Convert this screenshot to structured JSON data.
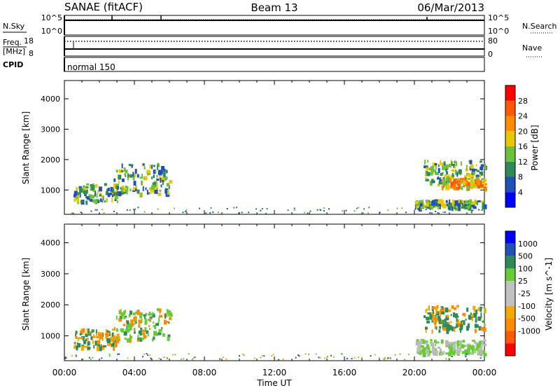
{
  "header": {
    "station": "SANAE (fitACF)",
    "beam": "Beam 13",
    "date": "06/Mar/2013"
  },
  "status_panels": {
    "nsky_label": "N.Sky",
    "nsky_ticks": [
      "10^5",
      "10^0"
    ],
    "nsearch_label": "N.Search",
    "nsearch_ticks": [
      "10^5",
      "10^0"
    ],
    "freq_label": "Freq.",
    "freq_unit": "[MHz]",
    "freq_ticks": [
      "18",
      "8"
    ],
    "nave_label": "Nave",
    "nave_ticks": [
      "80",
      "0"
    ],
    "cpid_label": "CPID",
    "cpid_value": "normal 150"
  },
  "colors": {
    "power": [
      "#0000ff",
      "#2050b8",
      "#2e8b57",
      "#6cc03c",
      "#e8c800",
      "#ff8c00",
      "#ff5a00",
      "#ff0000"
    ],
    "velocity": [
      "#ff0000",
      "#ff5a00",
      "#ff8c00",
      "#f5a800",
      "#c0c0c0",
      "#c0c0c0",
      "#66cc33",
      "#2e8b57",
      "#2050b8",
      "#0000ff"
    ],
    "velocity_gray": "#b8b8b8"
  },
  "chart_data": [
    {
      "type": "heatmap",
      "name": "power",
      "ylabel": "Slant Range [km]",
      "ylim": [
        200,
        4600
      ],
      "yticks": [
        "1000",
        "2000",
        "3000",
        "4000"
      ],
      "colorbar_label": "Power [dB]",
      "colorbar_ticks": [
        "4",
        "8",
        "12",
        "16",
        "20",
        "24",
        "28"
      ],
      "colorbar_range": [
        0,
        32
      ],
      "echo_regions": [
        {
          "t0": 0.5,
          "t1": 3.0,
          "r0": 650,
          "r1": 1250,
          "level": 2
        },
        {
          "t0": 2.8,
          "t1": 6.0,
          "r0": 900,
          "r1": 1900,
          "level": 2
        },
        {
          "t0": 20.5,
          "t1": 24.0,
          "r0": 1200,
          "r1": 2000,
          "level": 2
        },
        {
          "t0": 21.5,
          "t1": 24.0,
          "r0": 1100,
          "r1": 1400,
          "level": 4
        },
        {
          "t0": 20.0,
          "t1": 24.0,
          "r0": 450,
          "r1": 700,
          "level": 2
        }
      ]
    },
    {
      "type": "heatmap",
      "name": "velocity",
      "ylabel": "Slant Range [km]",
      "ylim": [
        200,
        4600
      ],
      "yticks": [
        "1000",
        "2000",
        "3000",
        "4000"
      ],
      "colorbar_label": "Velocity [m s^-1]",
      "colorbar_ticks": [
        "1000",
        "500",
        "100",
        "25",
        "-25",
        "-100",
        "-500",
        "-1000"
      ],
      "echo_regions": [
        {
          "t0": 0.5,
          "t1": 3.0,
          "r0": 650,
          "r1": 1250,
          "level": "-100"
        },
        {
          "t0": 2.8,
          "t1": 6.0,
          "r0": 900,
          "r1": 1900,
          "level": "100"
        },
        {
          "t0": 20.5,
          "t1": 24.0,
          "r0": 1200,
          "r1": 2000,
          "level": "-100"
        },
        {
          "t0": 20.0,
          "t1": 24.0,
          "r0": 450,
          "r1": 900,
          "level": "25"
        }
      ]
    }
  ],
  "time_axis": {
    "xlabel": "Time UT",
    "xlim": [
      0,
      24
    ],
    "ticks": [
      "00:00",
      "04:00",
      "08:00",
      "12:00",
      "16:00",
      "20:00",
      "00:00"
    ]
  }
}
